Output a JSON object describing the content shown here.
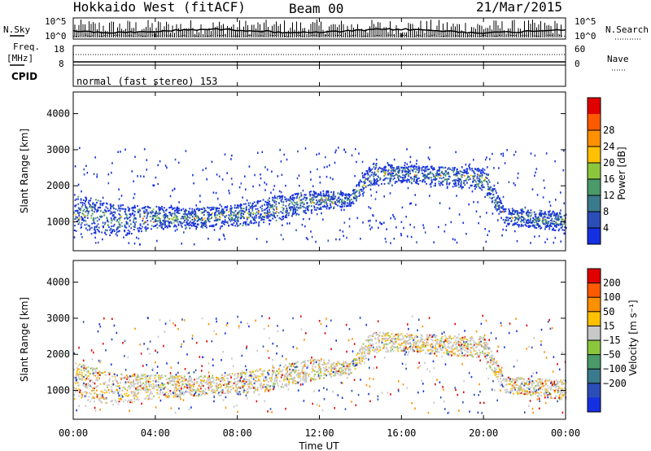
{
  "header": {
    "title": "Hokkaido West (fitACF)",
    "beam": "Beam 00",
    "date": "21/Mar/2015"
  },
  "top_panels": {
    "nsky_label": "N.Sky",
    "nsearch_label": "N.Search",
    "nsky_ticks": [
      "10^5",
      "10^0"
    ],
    "nsearch_ticks": [
      "10^5",
      "10^0"
    ],
    "freq_label_1": "Freq.",
    "freq_label_2": "[MHz]",
    "freq_ticks": [
      "18",
      "8"
    ],
    "nave_label": "Nave",
    "nave_ticks": [
      "60",
      "0"
    ],
    "cpid_label": "CPID",
    "cpid_text": "normal (fast stereo) 153"
  },
  "chart_data": [
    {
      "type": "heatmap",
      "name": "power",
      "ylabel": "Slant Range [km]",
      "yticks": [
        1000,
        2000,
        3000,
        4000
      ],
      "ylim": [
        200,
        4600
      ],
      "xlim": [
        "00:00",
        "24:00"
      ],
      "colorbar": {
        "label": "Power [dB]",
        "ticks": [
          "4",
          "8",
          "12",
          "16",
          "20",
          "24",
          "28"
        ],
        "colors": [
          "#1530e0",
          "#2a4db8",
          "#3a7a8c",
          "#4a9a6a",
          "#8cc63e",
          "#ffc000",
          "#ff9000",
          "#ff5a00",
          "#e00000"
        ]
      },
      "bands": [
        {
          "t": 0,
          "lo": 750,
          "hi": 1800
        },
        {
          "t": 2,
          "lo": 600,
          "hi": 1500
        },
        {
          "t": 4,
          "lo": 800,
          "hi": 1450
        },
        {
          "t": 6,
          "lo": 850,
          "hi": 1400
        },
        {
          "t": 8,
          "lo": 900,
          "hi": 1500
        },
        {
          "t": 10,
          "lo": 1050,
          "hi": 1750
        },
        {
          "t": 12,
          "lo": 1350,
          "hi": 1900
        },
        {
          "t": 13.5,
          "lo": 1450,
          "hi": 1800
        },
        {
          "t": 14.5,
          "lo": 2050,
          "hi": 2650
        },
        {
          "t": 16,
          "lo": 2100,
          "hi": 2600
        },
        {
          "t": 18,
          "lo": 2000,
          "hi": 2550
        },
        {
          "t": 20,
          "lo": 1900,
          "hi": 2500
        },
        {
          "t": 21,
          "lo": 950,
          "hi": 1400
        },
        {
          "t": 24,
          "lo": 750,
          "hi": 1300
        }
      ]
    },
    {
      "type": "heatmap",
      "name": "velocity",
      "ylabel": "Slant Range [km]",
      "xlabel": "Time UT",
      "yticks": [
        1000,
        2000,
        3000,
        4000
      ],
      "xticks": [
        "00:00",
        "04:00",
        "08:00",
        "12:00",
        "16:00",
        "20:00",
        "00:00"
      ],
      "ylim": [
        200,
        4600
      ],
      "xlim": [
        "00:00",
        "24:00"
      ],
      "colorbar": {
        "label": "Velocity [m s⁻¹]",
        "ticks": [
          "200",
          "100",
          "50",
          "15",
          "−15",
          "−50",
          "−100",
          "−200"
        ],
        "colors": [
          "#1530e0",
          "#2a4db8",
          "#3a7a8c",
          "#4a9a6a",
          "#8cc63e",
          "#c8c8c8",
          "#ffc000",
          "#ff9000",
          "#ff5a00",
          "#e00000"
        ]
      }
    }
  ]
}
